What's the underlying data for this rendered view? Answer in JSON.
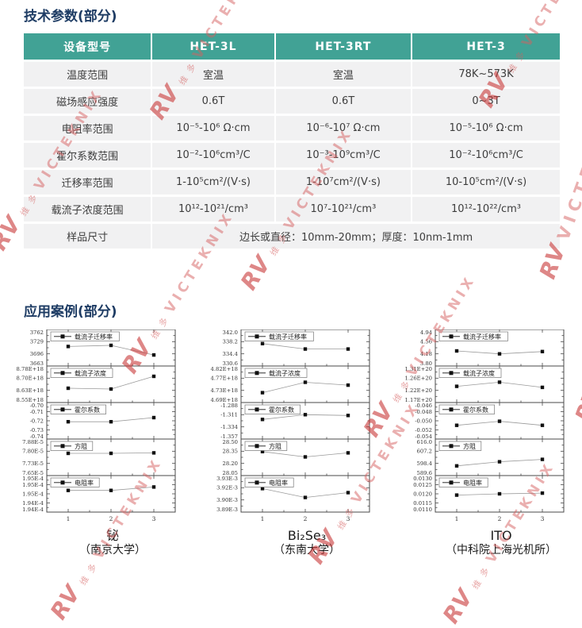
{
  "section1": {
    "title": "技术参数(部分)"
  },
  "section2": {
    "title": "应用案例(部分)"
  },
  "table": {
    "header": [
      "设备型号",
      "HET-3L",
      "HET-3RT",
      "HET-3"
    ],
    "rows": [
      [
        "温度范围",
        "室温",
        "室温",
        "78K~573K"
      ],
      [
        "磁场感应强度",
        "0.6T",
        "0.6T",
        "0~3T"
      ],
      [
        "电阻率范围",
        "10⁻⁵-10⁶ Ω·cm",
        "10⁻⁶-10⁷ Ω·cm",
        "10⁻⁵-10⁶ Ω·cm"
      ],
      [
        "霍尔系数范围",
        "10⁻²-10⁶cm³/C",
        "10⁻³-10⁹cm³/C",
        "10⁻²-10⁶cm³/C"
      ],
      [
        "迁移率范围",
        "1-10⁵cm²/(V·s)",
        "1-10⁷cm²/(V·s)",
        "10-10⁵cm²/(V·s)"
      ],
      [
        "载流子浓度范围",
        "10¹²-10²¹/cm³",
        "10⁷-10²¹/cm³",
        "10¹²-10²²/cm³"
      ]
    ],
    "span_row": {
      "label": "样品尺寸",
      "value": "边长或直径：10mm-20mm；厚度：10nm-1mm"
    }
  },
  "chart_data": [
    {
      "type": "line",
      "title": "铋",
      "subtitle": "（南京大学）",
      "x": [
        1,
        2,
        3
      ],
      "xlim": [
        0.5,
        3.5
      ],
      "legend_position": "top-left",
      "panels": [
        {
          "legend": "载流子迁移率",
          "ticks": [
            "3762",
            "3729",
            "3696",
            "3663"
          ],
          "ymax": 3762,
          "ymin": 3663,
          "values": [
            3716,
            3719,
            3693
          ]
        },
        {
          "legend": "载流子浓度",
          "ticks": [
            "8.78E+18",
            "8.70E+18",
            "8.63E+18",
            "8.55E+18"
          ],
          "ymax": 8.78e+18,
          "ymin": 8.55e+18,
          "values": [
            8.64e+18,
            8.635e+18,
            8.715e+18
          ]
        },
        {
          "legend": "霍尔系数",
          "ticks": [
            "-0.70",
            "-0.71",
            "-0.72",
            "-0.73",
            "-0.74"
          ],
          "ymax": -0.7,
          "ymin": -0.74,
          "values": [
            -0.721,
            -0.721,
            -0.7165
          ]
        },
        {
          "legend": "方阻",
          "ticks": [
            "7.88E-5",
            "7.80E-5",
            "7.73E-5",
            "7.65E-5"
          ],
          "ymax": 7.88e-05,
          "ymin": 7.65e-05,
          "values": [
            7.79e-05,
            7.79e-05,
            7.793e-05
          ]
        },
        {
          "legend": "电阻率",
          "ticks": [
            "1.95E-4",
            "1.95E-4",
            "1.95E-4",
            "1.94E-4",
            "1.94E-4"
          ],
          "ymax": 0.0001956,
          "ymin": 0.000194,
          "values": [
            0.00019495,
            0.00019495,
            0.0001951
          ]
        }
      ]
    },
    {
      "type": "line",
      "title": "Bi₂Se₃",
      "subtitle": "（东南大学）",
      "x": [
        1,
        2,
        3
      ],
      "xlim": [
        0.5,
        3.5
      ],
      "legend_position": "top-left",
      "panels": [
        {
          "legend": "载流子迁移率",
          "ticks": [
            "342.0",
            "338.2",
            "334.4",
            "330.6"
          ],
          "ymax": 342.0,
          "ymin": 330.6,
          "values": [
            337.6,
            335.9,
            335.9
          ]
        },
        {
          "legend": "载流子浓度",
          "ticks": [
            "4.82E+18",
            "4.77E+18",
            "4.73E+18",
            "4.69E+18"
          ],
          "ymax": 4.82e+18,
          "ymin": 4.69e+18,
          "values": [
            4.725e+18,
            4.762e+18,
            4.752e+18
          ]
        },
        {
          "legend": "霍尔系数",
          "ticks": [
            "-1.288",
            "-1.311",
            "-1.334",
            "-1.357"
          ],
          "ymax": -1.288,
          "ymin": -1.357,
          "values": [
            -1.32,
            -1.311,
            -1.3125
          ]
        },
        {
          "legend": "方阻",
          "ticks": [
            "28.50",
            "28.35",
            "28.20",
            "28.05"
          ],
          "ymax": 28.5,
          "ymin": 28.05,
          "values": [
            28.345,
            28.28,
            28.33
          ]
        },
        {
          "legend": "电阻率",
          "ticks": [
            "3.93E-3",
            "3.92E-3",
            "3.90E-3",
            "3.89E-3"
          ],
          "ymax": 0.003932,
          "ymin": 0.003887,
          "values": [
            0.003916,
            0.003905,
            0.003911
          ]
        }
      ]
    },
    {
      "type": "line",
      "title": "ITO",
      "subtitle": "（中科院上海光机所）",
      "x": [
        1,
        2,
        3
      ],
      "xlim": [
        0.5,
        3.5
      ],
      "legend_position": "top-left",
      "panels": [
        {
          "legend": "载流子迁移率",
          "ticks": [
            "4.94",
            "4.56",
            "4.18",
            "3.80"
          ],
          "ymax": 4.94,
          "ymin": 3.8,
          "values": [
            4.27,
            4.18,
            4.25
          ]
        },
        {
          "legend": "载流子浓度",
          "ticks": [
            "1.31E+20",
            "1.26E+20",
            "1.22E+20",
            "1.17E+20"
          ],
          "ymax": 1.31e+20,
          "ymin": 1.17e+20,
          "values": [
            1.232e+20,
            1.248e+20,
            1.228e+20
          ]
        },
        {
          "legend": "霍尔系数",
          "ticks": [
            "-0.046",
            "-0.048",
            "-0.050",
            "-0.052",
            "-0.054"
          ],
          "ymax": -0.046,
          "ymin": -0.054,
          "values": [
            -0.051,
            -0.0501,
            -0.051
          ]
        },
        {
          "legend": "方阻",
          "ticks": [
            "616.0",
            "607.2",
            "598.4",
            "589.6"
          ],
          "ymax": 616.0,
          "ymin": 589.6,
          "values": [
            596.6,
            599.6,
            601.3
          ]
        },
        {
          "legend": "电阻率",
          "ticks": [
            "0.0130",
            "0.0125",
            "0.0120",
            "0.0115",
            "0.0110"
          ],
          "ymax": 0.013,
          "ymin": 0.011,
          "values": [
            0.01193,
            0.012,
            0.01204
          ]
        }
      ]
    }
  ],
  "watermark": {
    "logo": "RV",
    "cjk": "维 多",
    "text": "VICTEKNIX"
  },
  "colors": {
    "header_teal": "#41a295",
    "title_navy": "#1e3c64",
    "row_bg": "#f1f1f2",
    "watermark_red": "#d55f5f"
  }
}
